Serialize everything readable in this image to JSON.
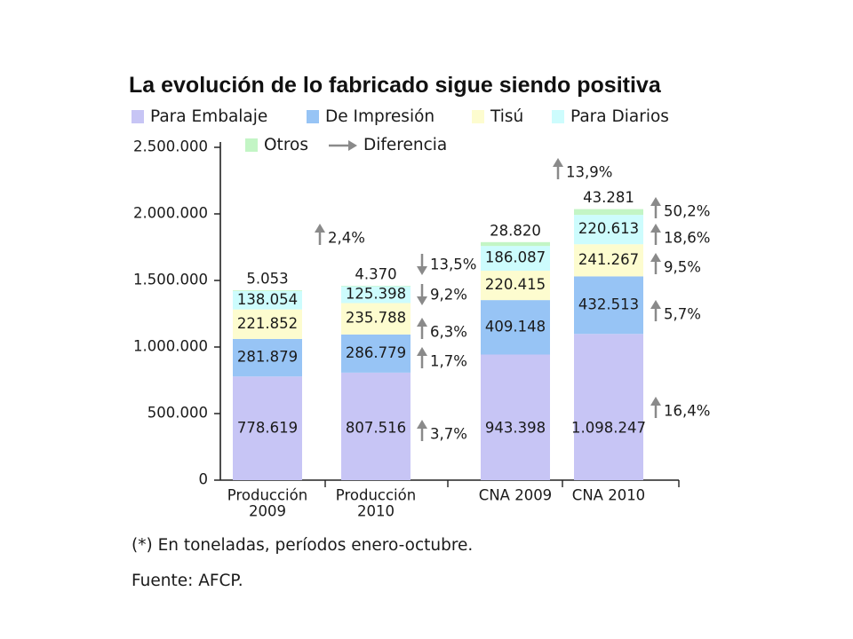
{
  "chart_data": {
    "type": "stacked-bar",
    "title": "La evolución de lo fabricado sigue siendo positiva",
    "categories": [
      "Producción\n2009",
      "Producción\n2010",
      "CNA 2009",
      "CNA 2010"
    ],
    "series": [
      {
        "name": "Para Embalaje",
        "color": "#c7c5f5",
        "values": [
          778619,
          807516,
          943398,
          1098247
        ],
        "labels": [
          "778.619",
          "807.516",
          "943.398",
          "1.098.247"
        ]
      },
      {
        "name": "De Impresión",
        "color": "#97c4f5",
        "values": [
          281879,
          286779,
          409148,
          432513
        ],
        "labels": [
          "281.879",
          "286.779",
          "409.148",
          "432.513"
        ]
      },
      {
        "name": "Tisú",
        "color": "#fdfccf",
        "values": [
          221852,
          235788,
          220415,
          241267
        ],
        "labels": [
          "221.852",
          "235.788",
          "220.415",
          "241.267"
        ]
      },
      {
        "name": "Para Diarios",
        "color": "#cdfcfd",
        "values": [
          138054,
          125398,
          186087,
          220613
        ],
        "labels": [
          "138.054",
          "125.398",
          "186.087",
          "220.613"
        ]
      },
      {
        "name": "Otros",
        "color": "#c3f5c5",
        "values": [
          5053,
          4370,
          28820,
          43281
        ],
        "labels": [
          "5.053",
          "4.370",
          "28.820",
          "43.281"
        ]
      }
    ],
    "legend_extra": "Diferencia",
    "y_axis": {
      "min": 0,
      "max": 2500000,
      "ticks": [
        0,
        500000,
        1000000,
        1500000,
        2000000,
        2500000
      ],
      "tick_labels": [
        "0",
        "500.000",
        "1.000.000",
        "1.500.000",
        "2.000.000",
        "2.500.000"
      ]
    },
    "grid": false,
    "legend_position": "top",
    "differences": [
      {
        "text": "2,4%",
        "direction": "up",
        "value": 2.4,
        "applies_to": "Producción 2010 total"
      },
      {
        "text": "13,5%",
        "direction": "down",
        "value": -13.5,
        "applies_to": "Producción 2010 Otros"
      },
      {
        "text": "9,2%",
        "direction": "down",
        "value": -9.2,
        "applies_to": "Producción 2010 Para Diarios"
      },
      {
        "text": "6,3%",
        "direction": "up",
        "value": 6.3,
        "applies_to": "Producción 2010 Tisú"
      },
      {
        "text": "1,7%",
        "direction": "up",
        "value": 1.7,
        "applies_to": "Producción 2010 De Impresión"
      },
      {
        "text": "3,7%",
        "direction": "up",
        "value": 3.7,
        "applies_to": "Producción 2010 Para Embalaje"
      },
      {
        "text": "13,9%",
        "direction": "up",
        "value": 13.9,
        "applies_to": "CNA 2010 total"
      },
      {
        "text": "50,2%",
        "direction": "up",
        "value": 50.2,
        "applies_to": "CNA 2010 Otros"
      },
      {
        "text": "18,6%",
        "direction": "up",
        "value": 18.6,
        "applies_to": "CNA 2010 Para Diarios"
      },
      {
        "text": "9,5%",
        "direction": "up",
        "value": 9.5,
        "applies_to": "CNA 2010 Tisú"
      },
      {
        "text": "5,7%",
        "direction": "up",
        "value": 5.7,
        "applies_to": "CNA 2010 De Impresión"
      },
      {
        "text": "16,4%",
        "direction": "up",
        "value": 16.4,
        "applies_to": "CNA 2010 Para Embalaje"
      }
    ]
  },
  "footnote": "(*) En toneladas, períodos enero-octubre.",
  "source": "Fuente: AFCP."
}
